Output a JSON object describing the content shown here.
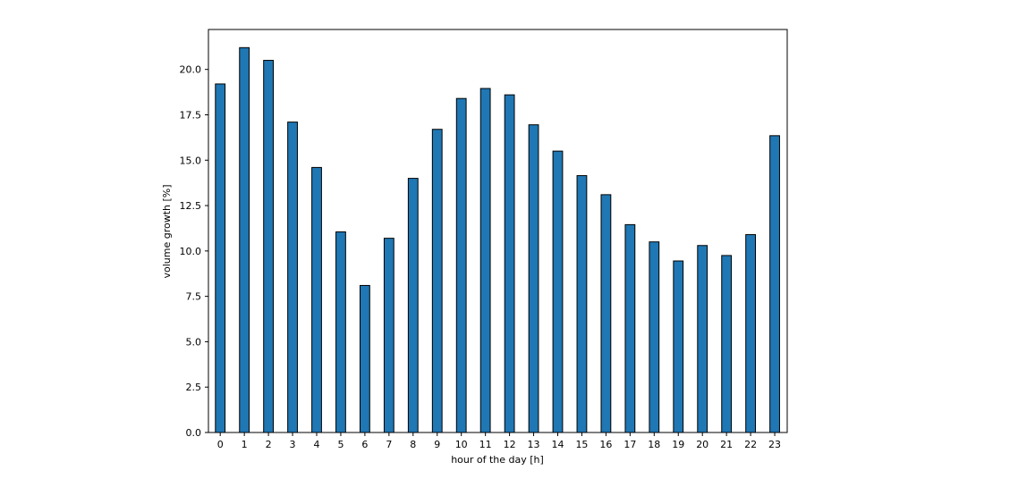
{
  "chart_data": {
    "type": "bar",
    "title": "",
    "xlabel": "hour of the day [h]",
    "ylabel": "volume growth [%]",
    "categories": [
      "0",
      "1",
      "2",
      "3",
      "4",
      "5",
      "6",
      "7",
      "8",
      "9",
      "10",
      "11",
      "12",
      "13",
      "14",
      "15",
      "16",
      "17",
      "18",
      "19",
      "20",
      "21",
      "22",
      "23"
    ],
    "values": [
      19.2,
      21.2,
      20.5,
      17.1,
      14.6,
      11.05,
      8.1,
      10.7,
      14.0,
      16.7,
      18.4,
      18.95,
      18.6,
      16.95,
      15.5,
      14.15,
      13.1,
      11.45,
      10.5,
      9.45,
      10.3,
      9.75,
      10.9,
      16.35
    ],
    "ylim": [
      0,
      22.2
    ],
    "yticks": [
      "0.0",
      "2.5",
      "5.0",
      "7.5",
      "10.0",
      "12.5",
      "15.0",
      "17.5",
      "20.0"
    ],
    "grid": false,
    "bar_color": "#1f77b4",
    "edge_color": "#000000"
  }
}
